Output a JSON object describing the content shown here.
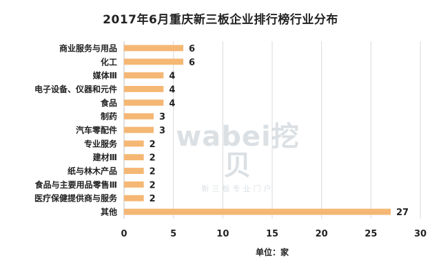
{
  "chart_data": {
    "type": "bar",
    "orientation": "horizontal",
    "title": "2017年6月重庆新三板企业排行榜行业分布",
    "xlabel": "单位：家",
    "ylabel": "",
    "categories": [
      "商业服务与用品",
      "化工",
      "媒体Ⅲ",
      "电子设备、仪器和元件",
      "食品",
      "制药",
      "汽车零配件",
      "专业服务",
      "建材Ⅲ",
      "纸与林木产品",
      "食品与主要用品零售Ⅲ",
      "医疗保健提供商与服务",
      "其他"
    ],
    "values": [
      6,
      6,
      4,
      4,
      4,
      3,
      3,
      2,
      2,
      2,
      2,
      2,
      27
    ],
    "xlim": [
      0,
      30
    ],
    "xticks": [
      0,
      5,
      10,
      15,
      20,
      25,
      30
    ],
    "grid": true,
    "legend": "none",
    "bar_color": "#F5B774",
    "grid_color": "#d9d9d9"
  },
  "watermark": {
    "main": "wabei挖贝",
    "sub": "新三板专业门户"
  }
}
